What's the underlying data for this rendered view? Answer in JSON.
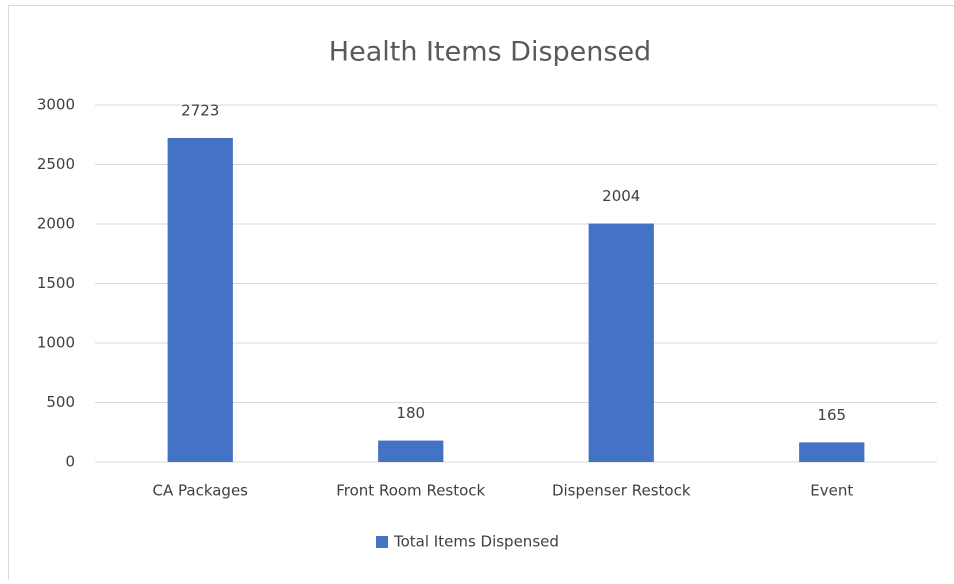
{
  "chart_data": {
    "type": "bar",
    "title": "Health Items Dispensed",
    "categories": [
      "CA Packages",
      "Front Room Restock",
      "Dispenser Restock",
      "Event"
    ],
    "series": [
      {
        "name": "Total Items Dispensed",
        "color": "#4472c4",
        "values": [
          2723,
          180,
          2004,
          165
        ]
      }
    ],
    "ylim": [
      0,
      3000
    ],
    "yticks": [
      0,
      500,
      1000,
      1500,
      2000,
      2500,
      3000
    ],
    "grid": true,
    "legend": "bottom"
  }
}
